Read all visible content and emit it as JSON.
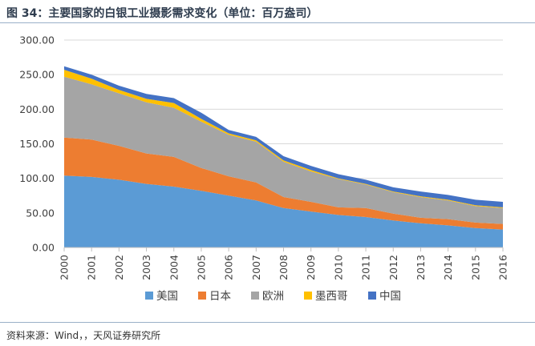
{
  "header": {
    "title": "图 34：主要国家的白银工业摄影需求变化（单位：百万盎司）"
  },
  "footer": {
    "source": "资料来源：Wind，，天风证券研究所"
  },
  "chart_data": {
    "type": "area",
    "stacked": true,
    "title": "",
    "xlabel": "",
    "ylabel": "",
    "categories": [
      "2000",
      "2001",
      "2002",
      "2003",
      "2004",
      "2005",
      "2006",
      "2007",
      "2008",
      "2009",
      "2010",
      "2011",
      "2012",
      "2013",
      "2014",
      "2015",
      "2016"
    ],
    "ylim": [
      0,
      300
    ],
    "yticks": [
      "0.00",
      "50.00",
      "100.00",
      "150.00",
      "200.00",
      "250.00",
      "300.00"
    ],
    "grid": true,
    "legend_position": "bottom",
    "series": [
      {
        "name": "美国",
        "color": "#5b9bd5",
        "values": [
          104,
          102,
          98,
          92,
          88,
          82,
          75,
          68,
          57,
          52,
          47,
          44,
          39,
          35,
          32,
          28,
          26
        ]
      },
      {
        "name": "日本",
        "color": "#ed7d31",
        "values": [
          55,
          54,
          49,
          44,
          43,
          33,
          28,
          26,
          16,
          14,
          11,
          13,
          10,
          8,
          9,
          8,
          8
        ]
      },
      {
        "name": "欧洲",
        "color": "#a5a5a5",
        "values": [
          88,
          80,
          76,
          74,
          71,
          67,
          60,
          59,
          51,
          44,
          41,
          34,
          31,
          30,
          27,
          24,
          23
        ]
      },
      {
        "name": "墨西哥",
        "color": "#ffc000",
        "values": [
          10,
          8,
          5,
          5,
          7,
          4,
          2,
          2,
          2,
          2,
          1,
          1,
          1,
          1,
          1,
          1,
          1
        ]
      },
      {
        "name": "中国",
        "color": "#4472c4",
        "values": [
          5,
          6,
          6,
          7,
          7,
          9,
          5,
          5,
          6,
          6,
          6,
          6,
          6,
          7,
          7,
          8,
          8
        ]
      }
    ]
  }
}
